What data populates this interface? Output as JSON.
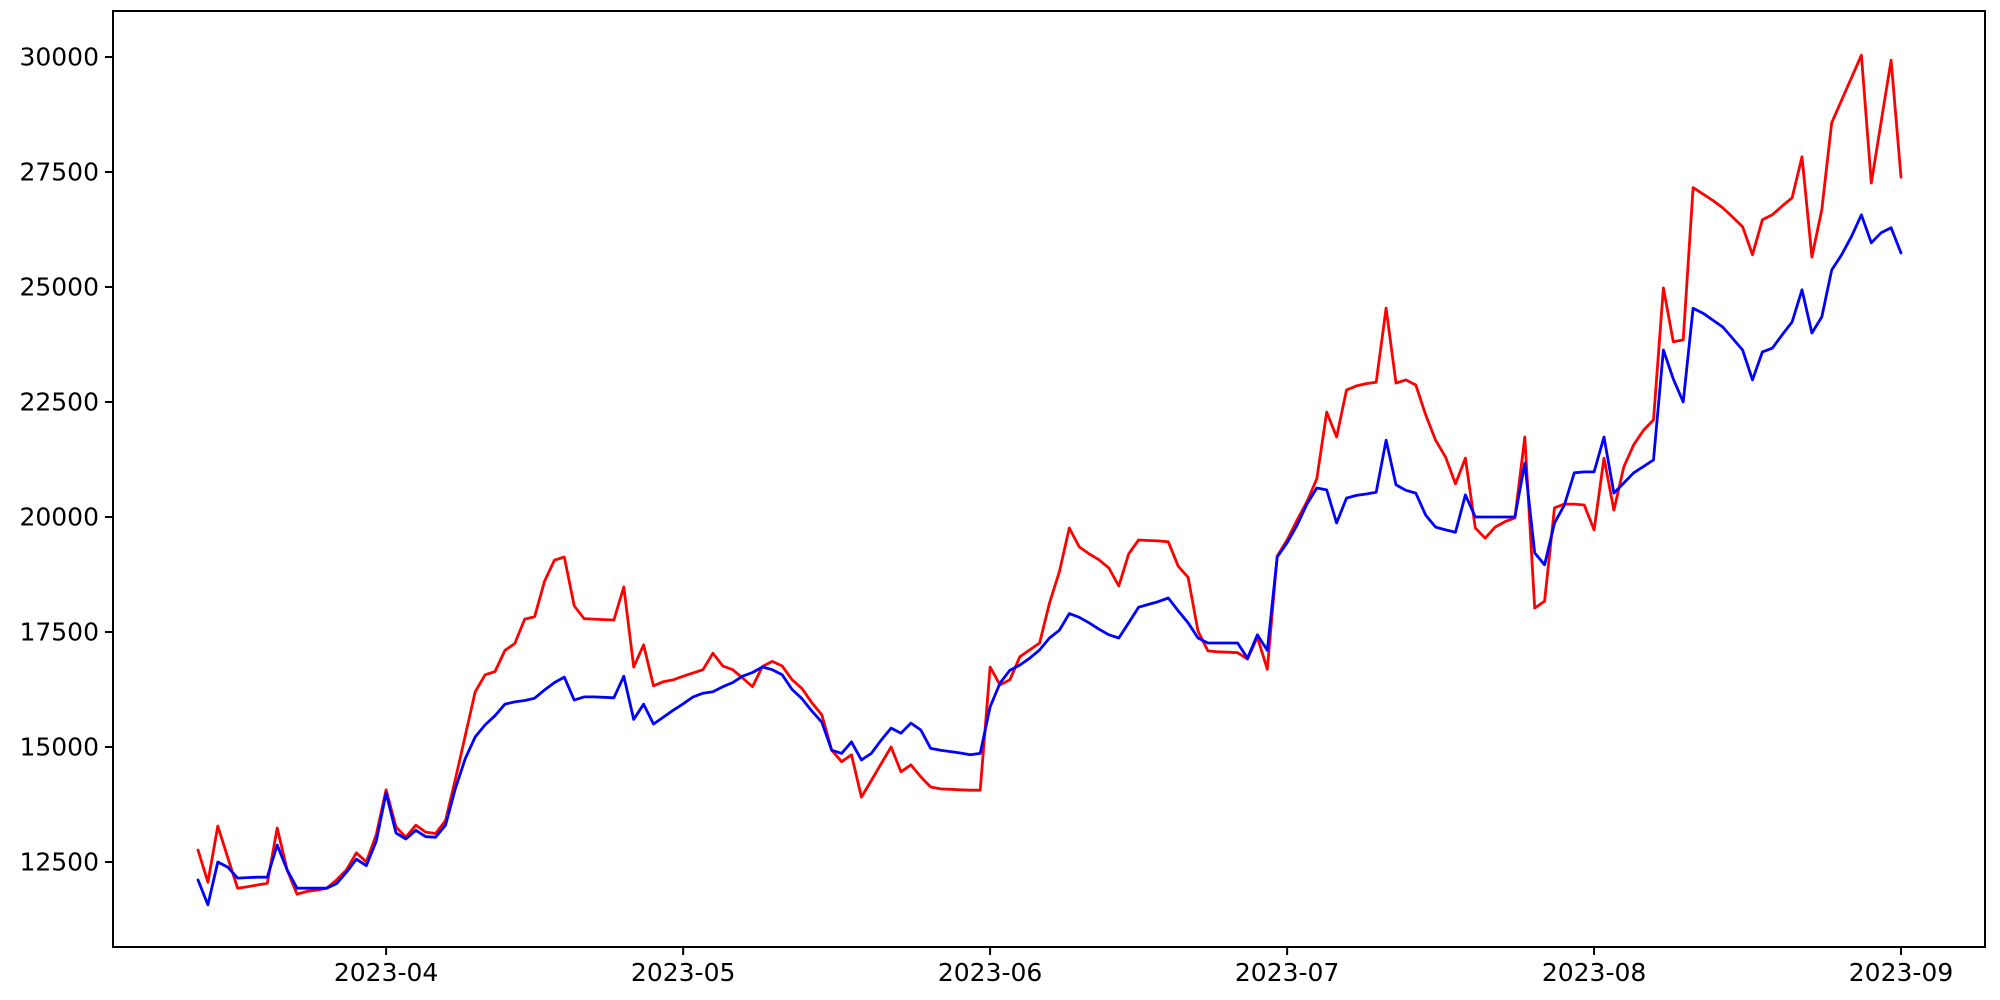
{
  "figure": {
    "background_color": "#ffffff",
    "title": "",
    "legend": null
  },
  "chart_data": {
    "type": "line",
    "title": "",
    "xlabel": "",
    "ylabel": "",
    "grid": false,
    "legend_position": "none",
    "x_axis": {
      "kind": "date",
      "tick_labels": [
        "2023-04",
        "2023-05",
        "2023-06",
        "2023-07",
        "2023-08",
        "2023-09"
      ],
      "visible_range_days_before_start": 9,
      "visible_range_days_after_end": 8
    },
    "y_axis": {
      "tick_labels": [
        "12500",
        "15000",
        "17500",
        "20000",
        "22500",
        "25000",
        "27500",
        "30000"
      ],
      "tick_values": [
        12500,
        15000,
        17500,
        20000,
        22500,
        25000,
        27500,
        30000
      ],
      "ylim": [
        10650,
        31000
      ]
    },
    "series_start_date": "2023-03-13",
    "series_frequency": "daily",
    "series": [
      {
        "name": "red-series",
        "color": "#ff0000",
        "line_width": 2.8,
        "values": [
          12760,
          12060,
          13280,
          12600,
          11930,
          11960,
          12000,
          12040,
          13240,
          12330,
          11800,
          11860,
          11890,
          11930,
          12110,
          12330,
          12700,
          12500,
          13090,
          14070,
          13260,
          13040,
          13300,
          13150,
          13120,
          13400,
          14300,
          15250,
          16200,
          16570,
          16640,
          17100,
          17250,
          17780,
          17830,
          18600,
          19060,
          19130,
          18070,
          17790,
          17780,
          17770,
          17760,
          18480,
          16740,
          17220,
          16330,
          16420,
          16460,
          16540,
          16610,
          16680,
          17040,
          16760,
          16680,
          16500,
          16310,
          16750,
          16860,
          16760,
          16460,
          16270,
          15960,
          15700,
          14930,
          14680,
          14830,
          13910,
          14270,
          14640,
          15000,
          14460,
          14610,
          14350,
          14130,
          14090,
          14080,
          14070,
          14060,
          14060,
          16740,
          16350,
          16460,
          16960,
          17110,
          17260,
          18130,
          18810,
          19760,
          19350,
          19200,
          19070,
          18890,
          18500,
          19200,
          19500,
          19490,
          19480,
          19460,
          18930,
          18690,
          17520,
          17090,
          17070,
          17060,
          17050,
          16910,
          17390,
          16690,
          19150,
          19500,
          19930,
          20330,
          20830,
          22280,
          21740,
          22760,
          22850,
          22900,
          22930,
          24540,
          22910,
          22980,
          22870,
          22220,
          21670,
          21300,
          20720,
          21280,
          19760,
          19540,
          19780,
          19900,
          19980,
          21740,
          18020,
          18170,
          20200,
          20280,
          20280,
          20260,
          19720,
          21280,
          20150,
          21090,
          21570,
          21890,
          22110,
          24980,
          23810,
          23850,
          27160,
          27020,
          26880,
          26720,
          26520,
          26310,
          25700,
          26460,
          26570,
          26760,
          26940,
          27830,
          25650,
          26680,
          28570,
          29060,
          29550,
          30040,
          27260,
          28600,
          29930,
          27390
        ]
      },
      {
        "name": "blue-series",
        "color": "#0000ff",
        "line_width": 2.8,
        "values": [
          12110,
          11570,
          12500,
          12390,
          12150,
          12160,
          12170,
          12170,
          12870,
          12330,
          11930,
          11930,
          11930,
          11930,
          12030,
          12280,
          12560,
          12420,
          12950,
          14000,
          13130,
          13000,
          13190,
          13050,
          13040,
          13300,
          14100,
          14750,
          15220,
          15480,
          15680,
          15930,
          15980,
          16010,
          16060,
          16240,
          16400,
          16520,
          16020,
          16090,
          16090,
          16080,
          16070,
          16540,
          15600,
          15930,
          15500,
          15650,
          15800,
          15940,
          16090,
          16170,
          16200,
          16310,
          16400,
          16540,
          16620,
          16740,
          16680,
          16570,
          16250,
          16050,
          15780,
          15540,
          14930,
          14860,
          15110,
          14720,
          14860,
          15150,
          15410,
          15300,
          15520,
          15370,
          14970,
          14930,
          14900,
          14870,
          14830,
          14860,
          15870,
          16390,
          16670,
          16780,
          16930,
          17110,
          17370,
          17540,
          17900,
          17820,
          17700,
          17560,
          17440,
          17370,
          17700,
          18040,
          18100,
          18160,
          18240,
          17960,
          17700,
          17370,
          17260,
          17260,
          17260,
          17260,
          16930,
          17440,
          17100,
          19130,
          19440,
          19820,
          20280,
          20630,
          20590,
          19870,
          20410,
          20470,
          20500,
          20540,
          21670,
          20700,
          20580,
          20520,
          20040,
          19780,
          19720,
          19670,
          20480,
          20000,
          20000,
          20000,
          20000,
          20000,
          21170,
          19220,
          18960,
          19870,
          20260,
          20960,
          20980,
          20980,
          21740,
          20520,
          20740,
          20960,
          21100,
          21240,
          23630,
          23000,
          22500,
          24540,
          24430,
          24280,
          24130,
          23880,
          23630,
          22980,
          23590,
          23670,
          23960,
          24240,
          24940,
          24000,
          24350,
          25370,
          25700,
          26100,
          26570,
          25960,
          26180,
          26290,
          25740
        ]
      }
    ]
  }
}
